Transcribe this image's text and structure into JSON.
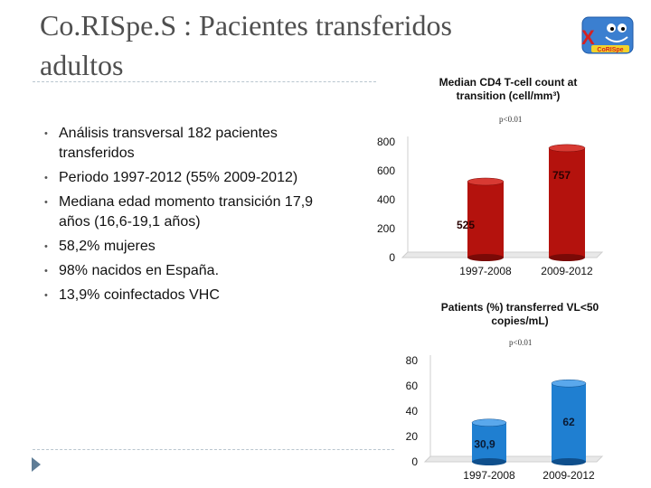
{
  "slide": {
    "title_line1": "Co.RISpe.S : Pacientes transferidos",
    "title_line2": "adultos",
    "bullets": [
      "Análisis transversal 182 pacientes transferidos",
      "Periodo 1997-2012 (55% 2009-2012)",
      "Mediana edad momento transición 17,9 años (16,6-19,1 años)",
      "58,2% mujeres",
      "98% nacidos en España.",
      "13,9% coinfectados VHC"
    ],
    "logo_text": "CoRISpe",
    "logo_x": "X"
  },
  "colors": {
    "title": "#4f4f4f",
    "bar_red": "#b4120d",
    "bar_blue": "#1f7fd1",
    "divider": "#b9c6cf"
  },
  "chart_data": [
    {
      "type": "bar",
      "title": "Median CD4 T-cell count at transition (cell/mm³)",
      "pvalue": "p<0.01",
      "categories": [
        "1997-2008",
        "2009-2012"
      ],
      "values": [
        525,
        757
      ],
      "value_labels": [
        "525",
        "757"
      ],
      "yticks": [
        0,
        200,
        400,
        600,
        800
      ],
      "ylim": [
        0,
        800
      ]
    },
    {
      "type": "bar",
      "title": "Patients (%) transferred VL<50 copies/mL)",
      "pvalue": "p<0.01",
      "categories": [
        "1997-2008",
        "2009-2012"
      ],
      "values": [
        30.9,
        62
      ],
      "value_labels": [
        "30,9",
        "62"
      ],
      "yticks": [
        0,
        20,
        40,
        60,
        80
      ],
      "ylim": [
        0,
        80
      ]
    }
  ]
}
